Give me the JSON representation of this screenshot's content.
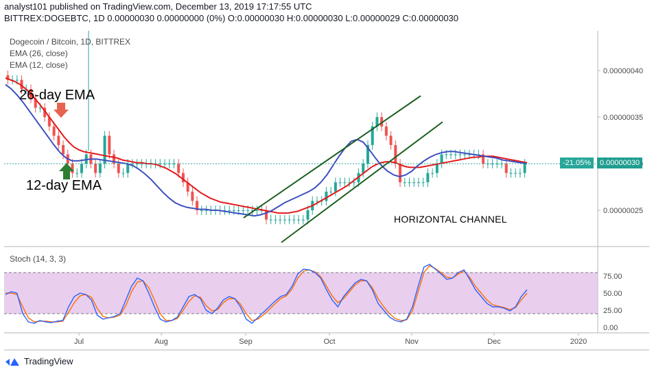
{
  "header": {
    "line1": "analyst101 published on TradingView.com, December 13, 2019 17:17:55 UTC",
    "line2": "BITTREX:DOGEBTC, 1D  0.00000030 0.00000000 (0%) O:0.00000030 H:0.00000030 L:0.00000029 C:0.00000030"
  },
  "legend": {
    "title": "Dogecoin / Bitcoin, 1D, BITTREX",
    "ema26": "EMA (26, close)",
    "ema12": "EMA (12, close)",
    "stoch": "Stoch (14, 3, 3)"
  },
  "annotations": {
    "ema26_label": "26-day EMA",
    "ema12_label": "12-day EMA",
    "channel_label": "HORIZONTAL CHANNEL"
  },
  "price_tag": {
    "change": "-21.05%",
    "price": "0.00000030"
  },
  "footer": {
    "brand": "TradingView"
  },
  "colors": {
    "up": "#26a69a",
    "down": "#ef5350",
    "ema26": "#e3191b",
    "ema12": "#3c4fc0",
    "stoch_k": "#2962ff",
    "stoch_d": "#ff6d00",
    "stoch_band": "#e1bee7",
    "trendline": "#1b5e20",
    "arrow_down": "#e8634f",
    "arrow_up": "#2e7d32"
  },
  "chart_data": {
    "type": "candlestick",
    "symbol": "BITTREX:DOGEBTC",
    "timeframe": "1D",
    "x_labels": [
      "Jul",
      "Aug",
      "Sep",
      "Oct",
      "Nov",
      "Dec",
      "2020"
    ],
    "y_ticks": [
      "0.00000040",
      "0.00000035",
      "0.00000030",
      "0.00000025"
    ],
    "y_range": [
      2.15e-07,
      4.4e-07
    ],
    "last_close": 3e-07,
    "close_series": [
      39,
      39,
      39,
      38,
      38,
      37,
      36,
      36,
      35,
      34,
      33,
      32,
      31,
      30,
      29,
      29,
      30,
      31,
      30,
      29,
      30,
      33,
      31,
      30,
      29,
      29,
      30,
      30,
      30,
      30,
      30,
      30,
      30,
      30,
      30,
      30,
      30,
      29,
      28,
      27,
      26,
      25,
      25,
      25,
      25,
      25,
      25,
      25,
      25,
      25,
      25,
      25,
      25,
      25,
      25,
      25,
      24,
      24,
      24,
      24,
      24,
      24,
      24,
      24,
      24,
      25,
      26,
      26,
      26,
      27,
      27,
      28,
      28,
      28,
      28,
      28,
      29,
      30,
      32,
      34,
      35,
      34,
      33,
      32,
      30,
      28,
      28,
      28,
      28,
      28,
      28,
      29,
      29,
      30,
      31,
      31,
      31,
      31,
      31,
      31,
      31,
      31,
      31,
      30,
      30,
      30,
      30,
      30,
      29,
      29,
      29,
      29,
      30
    ],
    "ema26_series": [
      39.2,
      39,
      38.8,
      38.5,
      38.1,
      37.6,
      37,
      36.4,
      35.7,
      35,
      34.3,
      33.6,
      32.9,
      32.3,
      31.8,
      31.5,
      31.3,
      31.2,
      31.1,
      31,
      30.9,
      30.8,
      30.7,
      30.6,
      30.4,
      30.3,
      30.2,
      30.1,
      30.1,
      30,
      30,
      29.9,
      29.7,
      29.5,
      29.2,
      28.9,
      28.5,
      28.1,
      27.7,
      27.3,
      26.9,
      26.6,
      26.3,
      26.1,
      25.9,
      25.8,
      25.7,
      25.6,
      25.5,
      25.4,
      25.3,
      25.2,
      25.1,
      25,
      24.9,
      24.8,
      24.7,
      24.7,
      24.7,
      24.8,
      24.9,
      25.1,
      25.3,
      25.5,
      25.8,
      26.1,
      26.4,
      26.7,
      27,
      27.3,
      27.6,
      28,
      28.4,
      28.8,
      29.2,
      29.6,
      29.9,
      30.1,
      30.2,
      30.2,
      30.1,
      29.9,
      29.7,
      29.6,
      29.6,
      29.6,
      29.7,
      29.8,
      29.9,
      30,
      30.1,
      30.2,
      30.3,
      30.4,
      30.5,
      30.6,
      30.7,
      30.7,
      30.8,
      30.8,
      30.8,
      30.7,
      30.6,
      30.5,
      30.4,
      30.3,
      30.2,
      30.1
    ],
    "ema12_series": [
      38.5,
      38,
      37.3,
      36.5,
      35.6,
      34.7,
      33.8,
      32.9,
      32,
      31.2,
      30.6,
      30.3,
      30.3,
      30.4,
      30.5,
      30.5,
      30.4,
      30.3,
      30.2,
      30.1,
      30,
      29.8,
      29.4,
      28.9,
      28.3,
      27.6,
      26.9,
      26.3,
      25.8,
      25.5,
      25.3,
      25.2,
      25.1,
      25.1,
      25,
      25,
      24.9,
      24.8,
      24.7,
      24.6,
      24.5,
      24.4,
      24.5,
      24.7,
      25,
      25.4,
      25.8,
      26.1,
      26.4,
      26.7,
      27,
      27.4,
      28,
      28.8,
      29.8,
      30.8,
      31.7,
      32.4,
      32.6,
      32.3,
      31.5,
      30.6,
      29.8,
      29.2,
      28.8,
      28.6,
      28.8,
      29.2,
      29.8,
      30.3,
      30.7,
      31,
      31.2,
      31.3,
      31.3,
      31.2,
      31.1,
      31,
      30.9,
      30.8,
      30.7,
      30.6,
      30.4,
      30.3,
      30.2,
      30.1,
      30
    ],
    "stoch_k": [
      48,
      52,
      50,
      20,
      8,
      6,
      10,
      8,
      7,
      9,
      10,
      30,
      45,
      50,
      48,
      40,
      18,
      12,
      14,
      16,
      20,
      40,
      60,
      72,
      68,
      50,
      30,
      12,
      8,
      10,
      15,
      30,
      45,
      48,
      42,
      25,
      20,
      28,
      40,
      45,
      42,
      30,
      12,
      6,
      14,
      22,
      30,
      38,
      45,
      48,
      60,
      78,
      85,
      84,
      80,
      72,
      55,
      40,
      30,
      45,
      55,
      65,
      70,
      68,
      55,
      35,
      25,
      15,
      10,
      8,
      12,
      30,
      60,
      88,
      92,
      85,
      78,
      70,
      72,
      80,
      84,
      70,
      55,
      45,
      35,
      30,
      30,
      28,
      24,
      30,
      45,
      55
    ],
    "stoch_d": [
      50,
      50,
      48,
      30,
      14,
      8,
      9,
      9,
      8,
      8,
      9,
      22,
      36,
      46,
      48,
      44,
      28,
      16,
      14,
      15,
      18,
      32,
      52,
      66,
      68,
      58,
      40,
      20,
      10,
      10,
      13,
      25,
      38,
      46,
      44,
      32,
      24,
      26,
      36,
      42,
      42,
      34,
      20,
      10,
      12,
      18,
      26,
      34,
      42,
      46,
      56,
      72,
      82,
      84,
      81,
      74,
      60,
      46,
      36,
      42,
      52,
      62,
      68,
      68,
      58,
      42,
      30,
      20,
      13,
      10,
      11,
      24,
      52,
      80,
      90,
      86,
      80,
      73,
      72,
      78,
      82,
      73,
      60,
      50,
      40,
      33,
      31,
      29,
      26,
      29,
      40,
      50
    ],
    "stoch_levels": [
      80,
      20
    ],
    "stoch_ticks": [
      "75.00",
      "50.00",
      "25.00",
      "0.00"
    ]
  }
}
